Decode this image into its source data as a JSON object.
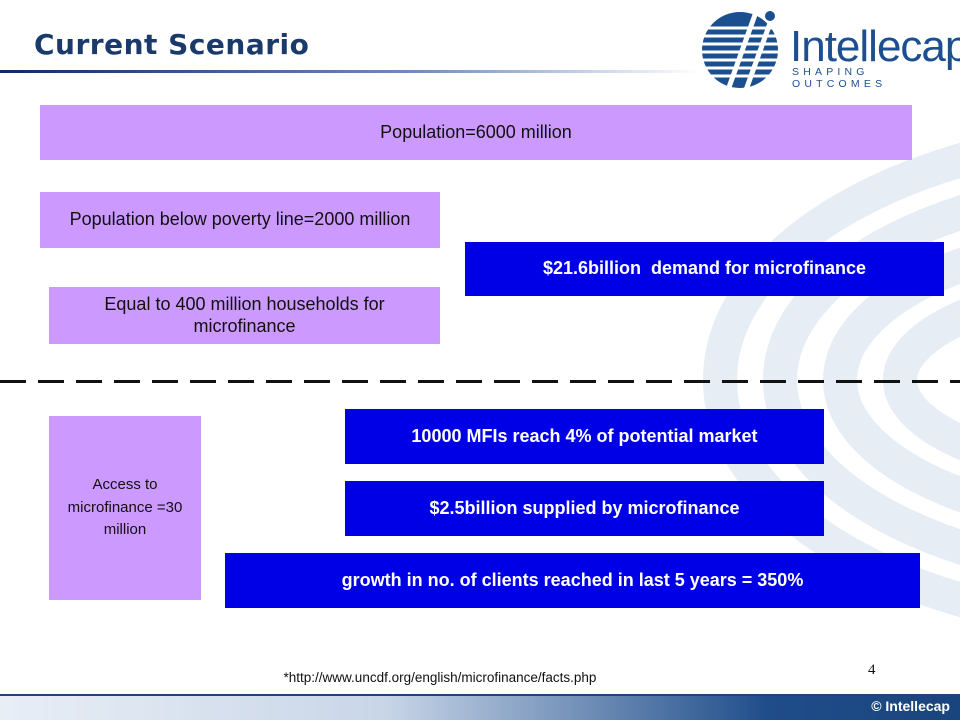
{
  "slide": {
    "title": "Current Scenario",
    "page_number": "4",
    "footnote": "*http://www.uncdf.org/english/microfinance/facts.php"
  },
  "logo": {
    "name": "Intellecap",
    "tagline": "SHAPING OUTCOMES",
    "footer_label": "Intellecap"
  },
  "top_section": {
    "population": "Population=6000 million",
    "poverty": "Population below poverty line=2000 million",
    "households": "Equal to 400 million households for microfinance",
    "demand": "$21.6billion  demand for microfinance"
  },
  "bottom_section": {
    "access": "Access to microfinance =30 million",
    "mfis": "10000 MFIs reach 4% of potential market",
    "supplied": "$2.5billion supplied by microfinance",
    "growth": "growth in no. of clients reached in last 5 years = 350%"
  },
  "colors": {
    "lilac": "#cc99ff",
    "blue": "#0000e6",
    "title": "#1a3a6b"
  }
}
